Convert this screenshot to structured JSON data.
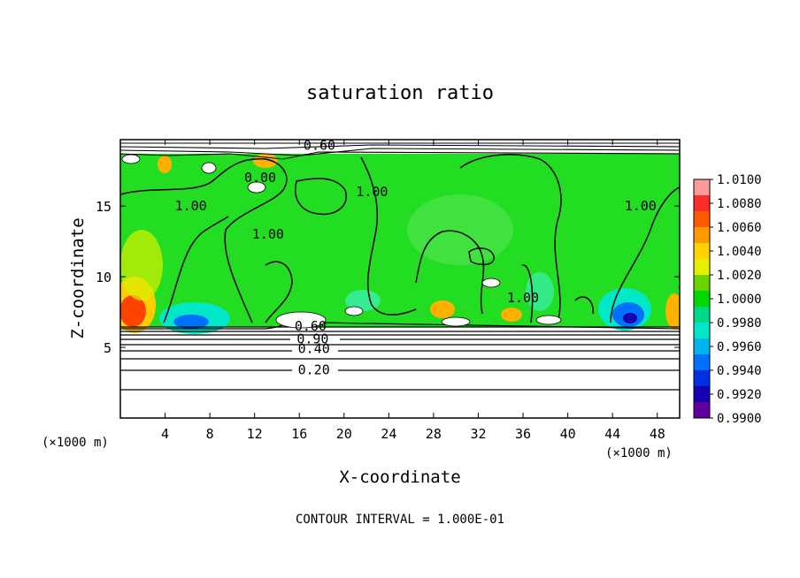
{
  "chart_data": {
    "type": "contour",
    "title": "saturation ratio",
    "xlabel": "X-coordinate",
    "ylabel": "Z-coordinate",
    "x_unit_note": "(×1000 m)",
    "xlim": [
      0,
      50
    ],
    "ylim": [
      0,
      19.7
    ],
    "x_ticks": [
      4,
      8,
      12,
      16,
      20,
      24,
      28,
      32,
      36,
      40,
      44,
      48
    ],
    "y_ticks": [
      5,
      10,
      15
    ],
    "contour_interval_text": "CONTOUR INTERVAL = 1.000E-01",
    "colorbar": {
      "ticks": [
        "1.0100",
        "1.0080",
        "1.0060",
        "1.0040",
        "1.0020",
        "1.0000",
        "0.9980",
        "0.9960",
        "0.9940",
        "0.9920",
        "0.9900"
      ],
      "colors": [
        "#ff9a9a",
        "#ff2a2a",
        "#ff5a00",
        "#ff9a00",
        "#ffd400",
        "#e6f000",
        "#6ad400",
        "#00d800",
        "#00d88a",
        "#00e8c8",
        "#00b4f0",
        "#0070ff",
        "#0030e0",
        "#1800b0",
        "#6000a0"
      ]
    },
    "contour_labels": [
      {
        "text": "0.20",
        "x": 17.3,
        "z": 3.4
      },
      {
        "text": "0.40",
        "x": 17.3,
        "z": 4.9
      },
      {
        "text": "0.90",
        "x": 17.2,
        "z": 5.6
      },
      {
        "text": "0.60",
        "x": 17.0,
        "z": 6.5
      },
      {
        "text": "0.60",
        "x": 17.8,
        "z": 19.3
      },
      {
        "text": "1.00",
        "x": 6.3,
        "z": 15.0
      },
      {
        "text": "1.00",
        "x": 13.2,
        "z": 13.0
      },
      {
        "text": "1.00",
        "x": 22.5,
        "z": 16.0
      },
      {
        "text": "1.00",
        "x": 46.5,
        "z": 15.0
      },
      {
        "text": "1.00",
        "x": 36.0,
        "z": 8.5
      },
      {
        "text": "0.00",
        "x": 12.5,
        "z": 17.0
      }
    ]
  }
}
